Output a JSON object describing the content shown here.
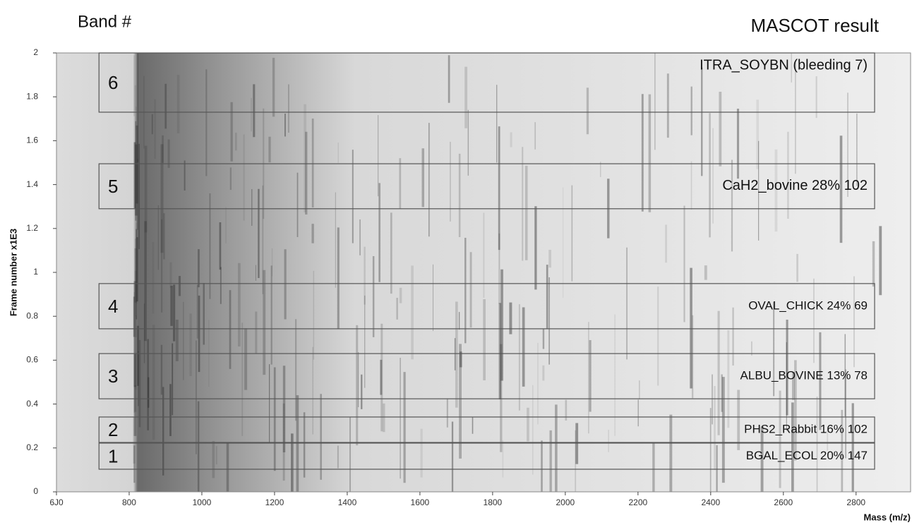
{
  "chart_data": {
    "type": "band-image",
    "title": "Band #",
    "subtitle": "MASCOT result",
    "xlabel": "Mass (m/z)",
    "ylabel": "Frame number x1E3",
    "xlim": [
      600,
      2950
    ],
    "ylim": [
      0,
      2
    ],
    "xticks": [
      {
        "value": 600,
        "label": "6J0"
      },
      800,
      1000,
      1200,
      1400,
      1600,
      1800,
      2000,
      2200,
      2400,
      2600,
      2800
    ],
    "yticks": [
      0,
      0.2,
      0.4,
      0.6,
      0.8,
      1,
      1.2,
      1.4,
      1.6,
      1.8,
      2
    ],
    "box_color": "#555555",
    "bands": [
      {
        "label": "6",
        "result": "ITRA_SOYBN (bleeding 7)",
        "frames": [
          1.73,
          2.0
        ],
        "mass": [
          717,
          2851
        ]
      },
      {
        "label": "5",
        "result": "CaH2_bovine 28% 102",
        "frames": [
          1.29,
          1.495
        ],
        "mass": [
          717,
          2851
        ]
      },
      {
        "label": "4",
        "result": "OVAL_CHICK 24% 69",
        "frames": [
          0.743,
          0.949
        ],
        "mass": [
          717,
          2851
        ]
      },
      {
        "label": "3",
        "result": "ALBU_BOVINE 13% 78",
        "frames": [
          0.424,
          0.63
        ],
        "mass": [
          717,
          2851
        ]
      },
      {
        "label": "2",
        "result": "PHS2_Rabbit 16% 102",
        "frames": [
          0.225,
          0.341
        ],
        "mass": [
          717,
          2851
        ]
      },
      {
        "label": "1",
        "result": "BGAL_ECOL 20% 147",
        "frames": [
          0.103,
          0.222
        ],
        "mass": [
          717,
          2851
        ]
      }
    ]
  }
}
